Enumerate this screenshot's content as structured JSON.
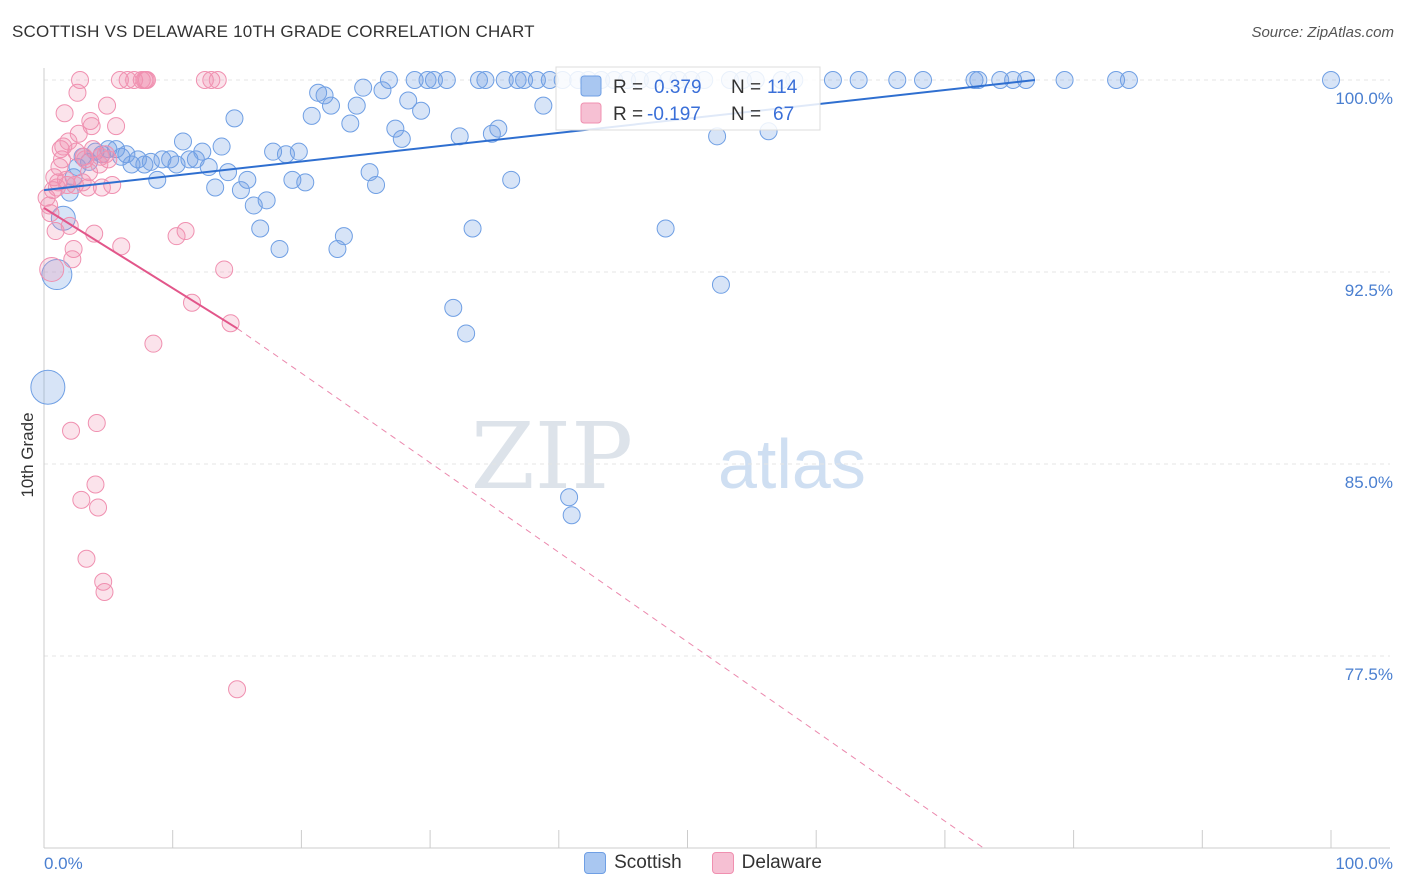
{
  "title": "SCOTTISH VS DELAWARE 10TH GRADE CORRELATION CHART",
  "source": "Source: ZipAtlas.com",
  "watermark": {
    "zip": "ZIP",
    "atlas": "atlas"
  },
  "legend": {
    "r_label": "R =",
    "n_label": "N =",
    "scottish": {
      "r": "0.379",
      "n": "114"
    },
    "delaware": {
      "r": "-0.197",
      "n": "67"
    }
  },
  "bottom_legend": {
    "scottish": "Scottish",
    "delaware": "Delaware"
  },
  "colors": {
    "scottish": "#6f9fe4",
    "scottish_line": "#2f6fd0",
    "delaware": "#f090b0",
    "delaware_line": "#e2568a"
  },
  "chart_data": {
    "type": "scatter",
    "title": "SCOTTISH VS DELAWARE 10TH GRADE CORRELATION CHART",
    "xlabel": "",
    "ylabel": "10th Grade",
    "xlim": [
      0,
      100
    ],
    "ylim": [
      70,
      100.8
    ],
    "x_tick_labels": [
      "0.0%",
      "100.0%"
    ],
    "y_ticks": [
      100.0,
      92.5,
      85.0,
      77.5
    ],
    "y_tick_labels": [
      "100.0%",
      "92.5%",
      "85.0%",
      "77.5%"
    ],
    "grid": true,
    "legend_position": "top-center",
    "series": [
      {
        "name": "Scottish",
        "r": 0.379,
        "n": 114,
        "trend": [
          [
            0,
            95.7
          ],
          [
            77,
            100
          ]
        ],
        "points": [
          [
            0.3,
            88.0
          ],
          [
            1.0,
            92.4
          ],
          [
            1.5,
            94.6
          ],
          [
            2.0,
            95.6
          ],
          [
            2.3,
            96.2
          ],
          [
            2.6,
            96.6
          ],
          [
            3.0,
            97.0
          ],
          [
            3.5,
            96.8
          ],
          [
            4.0,
            97.2
          ],
          [
            4.5,
            97.1
          ],
          [
            5.0,
            97.3
          ],
          [
            5.6,
            97.3
          ],
          [
            6.0,
            97.0
          ],
          [
            6.4,
            97.1
          ],
          [
            6.8,
            96.7
          ],
          [
            7.3,
            96.9
          ],
          [
            7.8,
            96.7
          ],
          [
            8.3,
            96.8
          ],
          [
            8.8,
            96.1
          ],
          [
            9.2,
            96.9
          ],
          [
            9.8,
            96.9
          ],
          [
            10.3,
            96.7
          ],
          [
            10.8,
            97.6
          ],
          [
            11.3,
            96.9
          ],
          [
            11.8,
            96.9
          ],
          [
            12.3,
            97.2
          ],
          [
            12.8,
            96.6
          ],
          [
            13.3,
            95.8
          ],
          [
            13.8,
            97.4
          ],
          [
            14.3,
            96.4
          ],
          [
            14.8,
            98.5
          ],
          [
            15.3,
            95.7
          ],
          [
            15.8,
            96.1
          ],
          [
            16.3,
            95.1
          ],
          [
            16.8,
            94.2
          ],
          [
            17.3,
            95.3
          ],
          [
            17.8,
            97.2
          ],
          [
            18.3,
            93.4
          ],
          [
            18.8,
            97.1
          ],
          [
            19.3,
            96.1
          ],
          [
            19.8,
            97.2
          ],
          [
            20.3,
            96.0
          ],
          [
            20.8,
            98.6
          ],
          [
            21.3,
            99.5
          ],
          [
            21.8,
            99.4
          ],
          [
            22.3,
            99.0
          ],
          [
            22.8,
            93.4
          ],
          [
            23.3,
            93.9
          ],
          [
            23.8,
            98.3
          ],
          [
            24.3,
            99.0
          ],
          [
            24.8,
            99.7
          ],
          [
            25.3,
            96.4
          ],
          [
            25.8,
            95.9
          ],
          [
            26.3,
            99.6
          ],
          [
            26.8,
            100.0
          ],
          [
            27.3,
            98.1
          ],
          [
            27.8,
            97.7
          ],
          [
            28.3,
            99.2
          ],
          [
            28.8,
            100.0
          ],
          [
            29.3,
            98.8
          ],
          [
            29.8,
            100.0
          ],
          [
            30.3,
            100.0
          ],
          [
            31.3,
            100.0
          ],
          [
            31.8,
            91.1
          ],
          [
            32.3,
            97.8
          ],
          [
            32.8,
            90.1
          ],
          [
            33.3,
            94.2
          ],
          [
            33.8,
            100.0
          ],
          [
            34.3,
            100.0
          ],
          [
            34.8,
            97.9
          ],
          [
            35.3,
            98.1
          ],
          [
            35.8,
            100.0
          ],
          [
            36.3,
            96.1
          ],
          [
            36.8,
            100.0
          ],
          [
            37.3,
            100.0
          ],
          [
            38.3,
            100.0
          ],
          [
            38.8,
            99.0
          ],
          [
            39.3,
            100.0
          ],
          [
            40.3,
            100.0
          ],
          [
            40.8,
            83.7
          ],
          [
            41.0,
            83.0
          ],
          [
            41.5,
            100.0
          ],
          [
            42.3,
            100.0
          ],
          [
            43.3,
            100.0
          ],
          [
            44.3,
            100.0
          ],
          [
            45.3,
            100.0
          ],
          [
            46.3,
            100.0
          ],
          [
            47.3,
            100.0
          ],
          [
            48.3,
            94.2
          ],
          [
            48.5,
            100.0
          ],
          [
            49.3,
            100.0
          ],
          [
            50.3,
            100.0
          ],
          [
            51.3,
            100.0
          ],
          [
            52.3,
            97.8
          ],
          [
            52.6,
            92.0
          ],
          [
            53.3,
            100.0
          ],
          [
            54.3,
            100.0
          ],
          [
            55.3,
            100.0
          ],
          [
            56.3,
            98.0
          ],
          [
            57.3,
            100.0
          ],
          [
            58.3,
            100.0
          ],
          [
            61.3,
            100.0
          ],
          [
            63.3,
            100.0
          ],
          [
            66.3,
            100.0
          ],
          [
            68.3,
            100.0
          ],
          [
            72.3,
            100.0
          ],
          [
            72.6,
            100.0
          ],
          [
            74.3,
            100.0
          ],
          [
            75.3,
            100.0
          ],
          [
            76.3,
            100.0
          ],
          [
            79.3,
            100.0
          ],
          [
            83.3,
            100.0
          ],
          [
            84.3,
            100.0
          ],
          [
            100,
            100.0
          ]
        ]
      },
      {
        "name": "Delaware",
        "r": -0.197,
        "n": 67,
        "trend": [
          [
            0,
            95.0
          ],
          [
            15,
            90.3
          ]
        ],
        "trend_extrapolated": [
          [
            15,
            90.3
          ],
          [
            73,
            70
          ]
        ],
        "points": [
          [
            0.2,
            95.4
          ],
          [
            0.4,
            95.1
          ],
          [
            0.5,
            94.8
          ],
          [
            0.6,
            92.6
          ],
          [
            0.7,
            95.7
          ],
          [
            0.8,
            96.2
          ],
          [
            0.9,
            94.1
          ],
          [
            1.0,
            95.8
          ],
          [
            1.1,
            96.0
          ],
          [
            1.2,
            96.6
          ],
          [
            1.3,
            97.3
          ],
          [
            1.4,
            96.9
          ],
          [
            1.5,
            97.4
          ],
          [
            1.6,
            98.7
          ],
          [
            1.7,
            96.1
          ],
          [
            1.8,
            95.9
          ],
          [
            1.9,
            97.6
          ],
          [
            2.0,
            94.3
          ],
          [
            2.1,
            86.3
          ],
          [
            2.2,
            93.0
          ],
          [
            2.3,
            93.4
          ],
          [
            2.4,
            95.9
          ],
          [
            2.5,
            97.2
          ],
          [
            2.6,
            99.5
          ],
          [
            2.7,
            97.9
          ],
          [
            2.8,
            100.0
          ],
          [
            2.9,
            83.6
          ],
          [
            3.0,
            96.0
          ],
          [
            3.1,
            97.0
          ],
          [
            3.2,
            96.9
          ],
          [
            3.3,
            81.3
          ],
          [
            3.4,
            95.8
          ],
          [
            3.5,
            96.4
          ],
          [
            3.6,
            98.4
          ],
          [
            3.7,
            98.2
          ],
          [
            3.8,
            97.3
          ],
          [
            3.9,
            94.0
          ],
          [
            4.0,
            84.2
          ],
          [
            4.1,
            86.6
          ],
          [
            4.2,
            83.3
          ],
          [
            4.3,
            96.7
          ],
          [
            4.4,
            97.0
          ],
          [
            4.5,
            95.8
          ],
          [
            4.6,
            80.4
          ],
          [
            4.7,
            80.0
          ],
          [
            4.8,
            97.1
          ],
          [
            4.9,
            99.0
          ],
          [
            5.0,
            96.9
          ],
          [
            5.3,
            95.9
          ],
          [
            5.6,
            98.2
          ],
          [
            5.9,
            100.0
          ],
          [
            6.0,
            93.5
          ],
          [
            6.5,
            100.0
          ],
          [
            7.0,
            100.0
          ],
          [
            7.6,
            100.0
          ],
          [
            7.8,
            100.0
          ],
          [
            7.9,
            100.0
          ],
          [
            8.0,
            100.0
          ],
          [
            8.5,
            89.7
          ],
          [
            10.3,
            93.9
          ],
          [
            11.0,
            94.1
          ],
          [
            11.5,
            91.3
          ],
          [
            12.5,
            100.0
          ],
          [
            13.0,
            100.0
          ],
          [
            13.5,
            100.0
          ],
          [
            14.0,
            92.6
          ],
          [
            14.5,
            90.5
          ],
          [
            15.0,
            76.2
          ]
        ]
      }
    ]
  }
}
